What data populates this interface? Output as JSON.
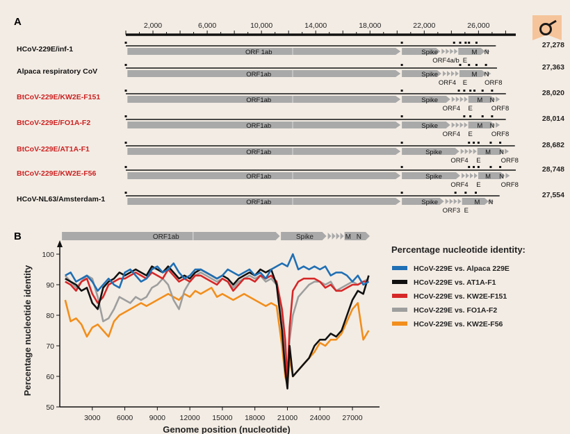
{
  "figure": {
    "publisher_logo_icon": "bookmark-logo-icon",
    "panel_a_letter": "A",
    "panel_b_letter": "B"
  },
  "panel_a": {
    "genome_axis_ticks": [
      "2,000",
      "6,000",
      "10,000",
      "14,000",
      "18,000",
      "22,000",
      "26,000"
    ],
    "genome_axis_tick_values": [
      2000,
      6000,
      10000,
      14000,
      18000,
      22000,
      26000
    ],
    "scale_max": 28748,
    "genomes": [
      {
        "name": "HCoV-229E/inf-1",
        "color": "#111111",
        "length_label": "27,278",
        "length": 27278,
        "labels": [
          {
            "text": "ORF 1ab",
            "pos": 9800,
            "row": "top"
          },
          {
            "text": "Spike",
            "pos": 22400,
            "row": "top"
          },
          {
            "text": "M",
            "pos": 25700,
            "row": "top"
          },
          {
            "text": "N",
            "pos": 26600,
            "row": "top"
          },
          {
            "text": "ORF4a/b",
            "pos": 23600,
            "row": "bottom"
          },
          {
            "text": "E",
            "pos": 25000,
            "row": "bottom"
          }
        ],
        "dots": [
          20350,
          24200,
          24650,
          25050,
          25300,
          25850
        ]
      },
      {
        "name": "Alpaca respiratory CoV",
        "color": "#111111",
        "length_label": "27,363",
        "length": 27363,
        "labels": [
          {
            "text": "ORF1ab",
            "pos": 9800,
            "row": "top"
          },
          {
            "text": "Spike",
            "pos": 22400,
            "row": "top"
          },
          {
            "text": "M",
            "pos": 25700,
            "row": "top"
          },
          {
            "text": "N",
            "pos": 26600,
            "row": "top"
          },
          {
            "text": "ORF4",
            "pos": 23700,
            "row": "bottom"
          },
          {
            "text": "E",
            "pos": 25000,
            "row": "bottom"
          },
          {
            "text": "ORF8",
            "pos": 27100,
            "row": "bottom"
          }
        ],
        "dots": [
          20350,
          24650,
          25300,
          25850,
          26550
        ]
      },
      {
        "name": "BtCoV-229E/KW2E-F151",
        "color": "#cc2222",
        "length_label": "28,020",
        "length": 28020,
        "labels": [
          {
            "text": "ORF1ab",
            "pos": 9800,
            "row": "top"
          },
          {
            "text": "Spike",
            "pos": 22400,
            "row": "top"
          },
          {
            "text": "M",
            "pos": 26100,
            "row": "top"
          },
          {
            "text": "N",
            "pos": 27000,
            "row": "top"
          },
          {
            "text": "ORF4",
            "pos": 24000,
            "row": "bottom"
          },
          {
            "text": "E",
            "pos": 25400,
            "row": "bottom"
          },
          {
            "text": "ORF8",
            "pos": 27600,
            "row": "bottom"
          }
        ],
        "dots": [
          20350,
          24550,
          24950,
          25400,
          25700,
          26300,
          27000
        ]
      },
      {
        "name": "BtCoV-229E/FO1A-F2",
        "color": "#cc2222",
        "length_label": "28,014",
        "length": 28014,
        "labels": [
          {
            "text": "ORF1ab",
            "pos": 9800,
            "row": "top"
          },
          {
            "text": "Spike",
            "pos": 22400,
            "row": "top"
          },
          {
            "text": "M",
            "pos": 26100,
            "row": "top"
          },
          {
            "text": "N",
            "pos": 27000,
            "row": "top"
          },
          {
            "text": "ORF4",
            "pos": 24000,
            "row": "bottom"
          },
          {
            "text": "E",
            "pos": 25400,
            "row": "bottom"
          },
          {
            "text": "ORF8",
            "pos": 27600,
            "row": "bottom"
          }
        ],
        "dots": [
          20350,
          24950,
          25400,
          26300,
          27000
        ]
      },
      {
        "name": "BtCoV-229E/AT1A-F1",
        "color": "#cc2222",
        "length_label": "28,682",
        "length": 28682,
        "labels": [
          {
            "text": "ORF1ab",
            "pos": 9800,
            "row": "top"
          },
          {
            "text": "Spike",
            "pos": 22700,
            "row": "top"
          },
          {
            "text": "M",
            "pos": 26700,
            "row": "top"
          },
          {
            "text": "N",
            "pos": 27700,
            "row": "top"
          },
          {
            "text": "ORF4",
            "pos": 24600,
            "row": "bottom"
          },
          {
            "text": "E",
            "pos": 26000,
            "row": "bottom"
          },
          {
            "text": "ORF8",
            "pos": 28300,
            "row": "bottom"
          }
        ],
        "dots": [
          20350,
          25300,
          25650,
          26000,
          26900,
          27600
        ]
      },
      {
        "name": "BtCoV-229E/KW2E-F56",
        "color": "#cc2222",
        "length_label": "28,748",
        "length": 28748,
        "labels": [
          {
            "text": "ORF1ab",
            "pos": 9800,
            "row": "top"
          },
          {
            "text": "Spike",
            "pos": 22700,
            "row": "top"
          },
          {
            "text": "M",
            "pos": 26700,
            "row": "top"
          },
          {
            "text": "N",
            "pos": 27700,
            "row": "top"
          },
          {
            "text": "ORF4",
            "pos": 24600,
            "row": "bottom"
          },
          {
            "text": "E",
            "pos": 26000,
            "row": "bottom"
          },
          {
            "text": "ORF8",
            "pos": 28300,
            "row": "bottom"
          }
        ],
        "dots": [
          20350,
          25300,
          25650,
          26000,
          26900,
          27600
        ]
      },
      {
        "name": "HCoV-NL63/Amsterdam-1",
        "color": "#111111",
        "length_label": "27,554",
        "length": 27554,
        "labels": [
          {
            "text": "ORF1ab",
            "pos": 9800,
            "row": "top"
          },
          {
            "text": "Spike",
            "pos": 22400,
            "row": "top"
          },
          {
            "text": "M",
            "pos": 25900,
            "row": "top"
          },
          {
            "text": "N",
            "pos": 26900,
            "row": "top"
          },
          {
            "text": "ORF3",
            "pos": 24000,
            "row": "bottom"
          },
          {
            "text": "E",
            "pos": 25100,
            "row": "bottom"
          }
        ],
        "dots": [
          20350,
          24300,
          25050,
          25800
        ]
      }
    ]
  },
  "panel_b": {
    "genome_bar": [
      {
        "text": "ORF1ab",
        "pos": 9800
      },
      {
        "text": "Spike",
        "pos": 22600
      },
      {
        "text": "M",
        "pos": 26600
      },
      {
        "text": "N",
        "pos": 27600
      }
    ],
    "legend_title": "Percentage nucleotide identity:"
  },
  "chart_data": {
    "type": "line",
    "title": "",
    "xlabel": "Genome position (nucleotide)",
    "ylabel": "Percentage nucleotide identity",
    "xlim": [
      0,
      29500
    ],
    "ylim": [
      50,
      100
    ],
    "x_ticks": [
      3000,
      6000,
      9000,
      12000,
      15000,
      18000,
      21000,
      24000,
      27000
    ],
    "y_ticks": [
      50,
      60,
      70,
      80,
      90,
      100
    ],
    "grid": false,
    "legend_position": "right",
    "series": [
      {
        "name": "HCoV-229E vs. Alpaca 229E",
        "color": "#1f6fb4",
        "x": [
          500,
          1000,
          1500,
          2000,
          2500,
          3000,
          3500,
          4000,
          4500,
          5000,
          5500,
          6000,
          6500,
          7000,
          7500,
          8000,
          8500,
          9000,
          9500,
          10000,
          10500,
          11000,
          11500,
          12000,
          12500,
          13000,
          13500,
          14000,
          14500,
          15000,
          15500,
          16000,
          16500,
          17000,
          17500,
          18000,
          18500,
          19000,
          19500,
          20000,
          20500,
          21000,
          21500,
          22000,
          22500,
          23000,
          23500,
          24000,
          24500,
          25000,
          25500,
          26000,
          26500,
          27000,
          27500,
          28000,
          28500
        ],
        "y": [
          93,
          94,
          91,
          92,
          93,
          91,
          88,
          90,
          92,
          90,
          89,
          94,
          95,
          93,
          91,
          92,
          95,
          96,
          94,
          95,
          97,
          94,
          92,
          93,
          95,
          95,
          94,
          93,
          92,
          93,
          95,
          94,
          93,
          94,
          95,
          93,
          94,
          92,
          95,
          96,
          97,
          96,
          100,
          95,
          96,
          95,
          96,
          95,
          96,
          93,
          94,
          94,
          93,
          91,
          93,
          90,
          91
        ]
      },
      {
        "name": "HCoV-229E vs. AT1A-F1",
        "color": "#111111",
        "x": [
          500,
          1000,
          1500,
          2000,
          2500,
          3000,
          3500,
          4000,
          4500,
          5000,
          5500,
          6000,
          6500,
          7000,
          7500,
          8000,
          8500,
          9000,
          9500,
          10000,
          10500,
          11000,
          11500,
          12000,
          12500,
          13000,
          13500,
          14000,
          14500,
          15000,
          15500,
          16000,
          16500,
          17000,
          17500,
          18000,
          18500,
          19000,
          19500,
          20000,
          20500,
          20800,
          21000,
          21200,
          21500,
          22000,
          22500,
          23000,
          23500,
          24000,
          24500,
          25000,
          25500,
          26000,
          26500,
          27000,
          27500,
          28000,
          28500
        ],
        "y": [
          92,
          91,
          90,
          88,
          89,
          84,
          82,
          89,
          91,
          92,
          94,
          93,
          94,
          95,
          94,
          93,
          96,
          95,
          94,
          96,
          94,
          92,
          93,
          92,
          94,
          95,
          94,
          93,
          92,
          93,
          92,
          90,
          92,
          93,
          94,
          93,
          95,
          94,
          95,
          90,
          75,
          62,
          56,
          70,
          60,
          62,
          64,
          66,
          70,
          72,
          72,
          74,
          73,
          75,
          80,
          85,
          88,
          87,
          93
        ]
      },
      {
        "name": "HCoV-229E vs. KW2E-F151",
        "color": "#d62728",
        "x": [
          500,
          1000,
          1500,
          2000,
          2500,
          3000,
          3500,
          4000,
          4500,
          5000,
          5500,
          6000,
          6500,
          7000,
          7500,
          8000,
          8500,
          9000,
          9500,
          10000,
          10500,
          11000,
          11500,
          12000,
          12500,
          13000,
          13500,
          14000,
          14500,
          15000,
          15500,
          16000,
          16500,
          17000,
          17500,
          18000,
          18500,
          19000,
          19500,
          20000,
          20500,
          20800,
          21000,
          21200,
          21500,
          22000,
          22500,
          23000,
          23500,
          24000,
          24500,
          25000,
          25500,
          26000,
          26500,
          27000,
          27500,
          28000,
          28500
        ],
        "y": [
          91,
          90,
          88,
          91,
          92,
          87,
          84,
          86,
          90,
          91,
          92,
          92,
          93,
          94,
          93,
          92,
          94,
          93,
          92,
          95,
          93,
          91,
          92,
          91,
          93,
          93,
          92,
          91,
          90,
          92,
          91,
          88,
          90,
          92,
          92,
          91,
          93,
          92,
          93,
          91,
          82,
          72,
          58,
          76,
          88,
          91,
          92,
          92,
          92,
          91,
          89,
          90,
          88,
          88,
          89,
          90,
          90,
          91,
          91
        ]
      },
      {
        "name": "HCoV-229E vs. FO1A-F2",
        "color": "#9e9e9e",
        "x": [
          500,
          1000,
          1500,
          2000,
          2500,
          3000,
          3500,
          4000,
          4500,
          5000,
          5500,
          6000,
          6500,
          7000,
          7500,
          8000,
          8500,
          9000,
          9500,
          10000,
          10500,
          11000,
          11500,
          12000,
          12500,
          13000,
          13500,
          14000,
          14500,
          15000,
          15500,
          16000,
          16500,
          17000,
          17500,
          18000,
          18500,
          19000,
          19500,
          20000,
          20500,
          20800,
          21000,
          21200,
          21500,
          22000,
          22500,
          23000,
          23500,
          24000,
          24500,
          25000,
          25500,
          26000,
          26500,
          27000,
          27500,
          28000,
          28500
        ],
        "y": [
          93,
          91,
          89,
          91,
          93,
          92,
          86,
          78,
          79,
          82,
          86,
          85,
          84,
          86,
          85,
          86,
          89,
          90,
          92,
          90,
          85,
          82,
          88,
          91,
          93,
          94,
          93,
          92,
          91,
          92,
          91,
          89,
          91,
          92,
          93,
          92,
          93,
          91,
          92,
          90,
          80,
          68,
          60,
          72,
          80,
          86,
          88,
          90,
          91,
          91,
          90,
          91,
          88,
          89,
          90,
          91,
          90,
          91,
          92
        ]
      },
      {
        "name": "HCoV-229E vs. KW2E-F56",
        "color": "#f28e1c",
        "x": [
          500,
          1000,
          1500,
          2000,
          2500,
          3000,
          3500,
          4000,
          4500,
          5000,
          5500,
          6000,
          6500,
          7000,
          7500,
          8000,
          8500,
          9000,
          9500,
          10000,
          10500,
          11000,
          11500,
          12000,
          12500,
          13000,
          13500,
          14000,
          14500,
          15000,
          15500,
          16000,
          16500,
          17000,
          17500,
          18000,
          18500,
          19000,
          19500,
          20000,
          20500,
          20800,
          21000,
          21200,
          21500,
          22000,
          22500,
          23000,
          23500,
          24000,
          24500,
          25000,
          25500,
          26000,
          26500,
          27000,
          27500,
          28000,
          28500
        ],
        "y": [
          85,
          78,
          79,
          77,
          73,
          76,
          77,
          75,
          73,
          78,
          80,
          81,
          82,
          83,
          84,
          83,
          84,
          85,
          86,
          87,
          86,
          85,
          87,
          86,
          88,
          87,
          88,
          89,
          86,
          87,
          86,
          85,
          86,
          87,
          86,
          85,
          84,
          83,
          84,
          83,
          70,
          60,
          57,
          66,
          60,
          62,
          64,
          66,
          68,
          71,
          70,
          72,
          72,
          74,
          78,
          82,
          84,
          72,
          75
        ]
      }
    ]
  }
}
